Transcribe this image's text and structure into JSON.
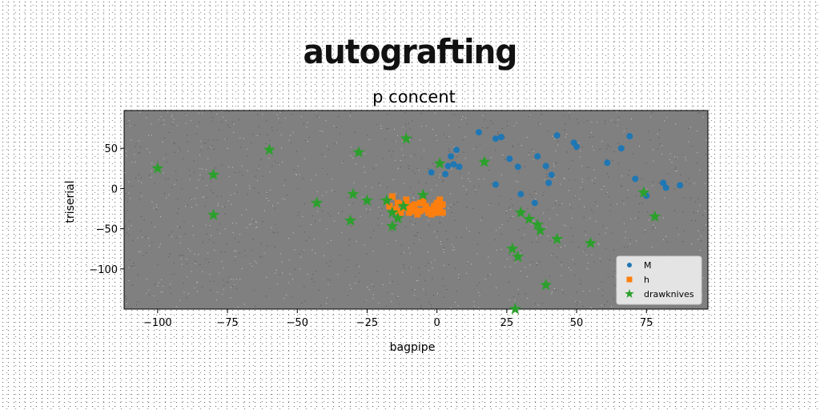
{
  "suptitle": "autografting",
  "chart_data": {
    "type": "scatter",
    "title": "p concent",
    "xlabel": "bagpipe",
    "ylabel": "triserial",
    "xlim": [
      -112,
      97
    ],
    "ylim": [
      -150,
      97
    ],
    "xticks": [
      -100,
      -75,
      -50,
      -25,
      0,
      25,
      50,
      75
    ],
    "yticks": [
      -100,
      -50,
      0,
      50
    ],
    "grid": false,
    "legend_position": "bottom-right",
    "colors": {
      "plot_bg": "#808080",
      "M": "#1f77b4",
      "h": "#ff7f0e",
      "drawknives": "#2ca02c"
    },
    "series": [
      {
        "name": "M",
        "marker": "circle",
        "points": [
          [
            15,
            70
          ],
          [
            21,
            62
          ],
          [
            23,
            64
          ],
          [
            26,
            37
          ],
          [
            29,
            27
          ],
          [
            36,
            40
          ],
          [
            39,
            28
          ],
          [
            40,
            7
          ],
          [
            41,
            17
          ],
          [
            43,
            66
          ],
          [
            49,
            57
          ],
          [
            50,
            52
          ],
          [
            61,
            32
          ],
          [
            66,
            50
          ],
          [
            69,
            65
          ],
          [
            71,
            12
          ],
          [
            75,
            -9
          ],
          [
            81,
            7
          ],
          [
            82,
            1
          ],
          [
            87,
            4
          ],
          [
            6,
            30
          ],
          [
            7,
            48
          ],
          [
            5,
            40
          ],
          [
            4,
            28
          ],
          [
            8,
            27
          ],
          [
            -2,
            20
          ],
          [
            3,
            18
          ],
          [
            21,
            5
          ],
          [
            30,
            -7
          ],
          [
            35,
            -18
          ]
        ]
      },
      {
        "name": "h",
        "marker": "square",
        "points": [
          [
            -16,
            -10
          ],
          [
            -14,
            -18
          ],
          [
            -12,
            -24
          ],
          [
            -10,
            -30
          ],
          [
            -8,
            -20
          ],
          [
            -6,
            -28
          ],
          [
            -4,
            -22
          ],
          [
            -2,
            -26
          ],
          [
            0,
            -18
          ],
          [
            1,
            -24
          ],
          [
            2,
            -30
          ],
          [
            -15,
            -26
          ],
          [
            -13,
            -30
          ],
          [
            -11,
            -14
          ],
          [
            -9,
            -26
          ],
          [
            -7,
            -32
          ],
          [
            -5,
            -16
          ],
          [
            -3,
            -30
          ],
          [
            -1,
            -22
          ],
          [
            1,
            -14
          ],
          [
            -12,
            -20
          ],
          [
            -8,
            -28
          ],
          [
            -4,
            -26
          ],
          [
            0,
            -30
          ],
          [
            -10,
            -22
          ],
          [
            -6,
            -18
          ],
          [
            -2,
            -32
          ],
          [
            2,
            -20
          ],
          [
            -14,
            -28
          ],
          [
            -17,
            -22
          ]
        ]
      },
      {
        "name": "drawknives",
        "marker": "star",
        "points": [
          [
            -100,
            25
          ],
          [
            -80,
            17
          ],
          [
            -80,
            -33
          ],
          [
            -60,
            48
          ],
          [
            -43,
            -18
          ],
          [
            -30,
            -7
          ],
          [
            -31,
            -40
          ],
          [
            -28,
            45
          ],
          [
            -25,
            -15
          ],
          [
            -18,
            -15
          ],
          [
            -16,
            -30
          ],
          [
            -16,
            -47
          ],
          [
            -14,
            -37
          ],
          [
            -12,
            -22
          ],
          [
            -11,
            62
          ],
          [
            -5,
            -8
          ],
          [
            1,
            31
          ],
          [
            17,
            33
          ],
          [
            27,
            -75
          ],
          [
            29,
            -85
          ],
          [
            30,
            -30
          ],
          [
            33,
            -38
          ],
          [
            36,
            -45
          ],
          [
            37,
            -52
          ],
          [
            39,
            -120
          ],
          [
            43,
            -63
          ],
          [
            55,
            -68
          ],
          [
            74,
            -5
          ],
          [
            78,
            -35
          ],
          [
            28,
            -150
          ]
        ]
      }
    ]
  }
}
